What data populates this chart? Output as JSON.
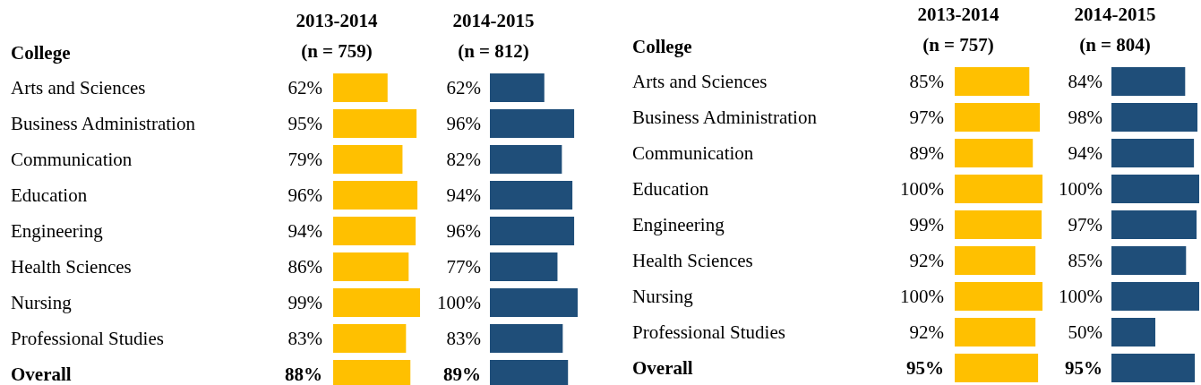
{
  "chart_data": [
    {
      "type": "bar",
      "orientation": "horizontal",
      "title": "2013-2014\n(n = 759)",
      "ylabel": "College",
      "tick_labels": "y",
      "categories": [
        "Arts and Sciences",
        "Business Administration",
        "Communication",
        "Education",
        "Engineering",
        "Health Sciences",
        "Nursing",
        "Professional Studies",
        "Overall"
      ],
      "series": [
        {
          "color": "#ffc000",
          "values": [
            62,
            95,
            79,
            96,
            94,
            86,
            99,
            83,
            88
          ],
          "value_labels": [
            "62%",
            "95%",
            "79%",
            "96%",
            "94%",
            "86%",
            "99%",
            "83%",
            "88%"
          ]
        }
      ]
    },
    {
      "type": "bar",
      "orientation": "horizontal",
      "title": "2014-2015\n(n = 812)",
      "tick_labels": false,
      "categories": [
        "Arts and Sciences",
        "Business Administration",
        "Communication",
        "Education",
        "Engineering",
        "Health Sciences",
        "Nursing",
        "Professional Studies",
        "Overall"
      ],
      "series": [
        {
          "color": "#1f4e79",
          "values": [
            62,
            96,
            82,
            94,
            96,
            77,
            100,
            83,
            89
          ],
          "value_labels": [
            "62%",
            "96%",
            "82%",
            "94%",
            "96%",
            "77%",
            "100%",
            "83%",
            "89%"
          ]
        }
      ]
    },
    {
      "type": "bar",
      "orientation": "horizontal",
      "title": "2013-2014\n(n = 757)",
      "ylabel": "College",
      "tick_labels": "y",
      "categories": [
        "Arts and Sciences",
        "Business Administration",
        "Communication",
        "Education",
        "Engineering",
        "Health Sciences",
        "Nursing",
        "Professional Studies",
        "Overall"
      ],
      "series": [
        {
          "color": "#ffc000",
          "values": [
            85,
            97,
            89,
            100,
            99,
            92,
            100,
            92,
            95
          ],
          "value_labels": [
            "85%",
            "97%",
            "89%",
            "100%",
            "99%",
            "92%",
            "100%",
            "92%",
            "95%"
          ]
        }
      ]
    },
    {
      "type": "bar",
      "orientation": "horizontal",
      "title": "2014-2015\n(n = 804)",
      "tick_labels": false,
      "categories": [
        "Arts and Sciences",
        "Business Administration",
        "Communication",
        "Education",
        "Engineering",
        "Health Sciences",
        "Nursing",
        "Professional Studies",
        "Overall"
      ],
      "series": [
        {
          "color": "#1f4e79",
          "values": [
            84,
            98,
            94,
            100,
            97,
            85,
            100,
            50,
            95
          ],
          "value_labels": [
            "84%",
            "98%",
            "94%",
            "100%",
            "97%",
            "85%",
            "100%",
            "50%",
            "95%"
          ]
        }
      ]
    }
  ]
}
